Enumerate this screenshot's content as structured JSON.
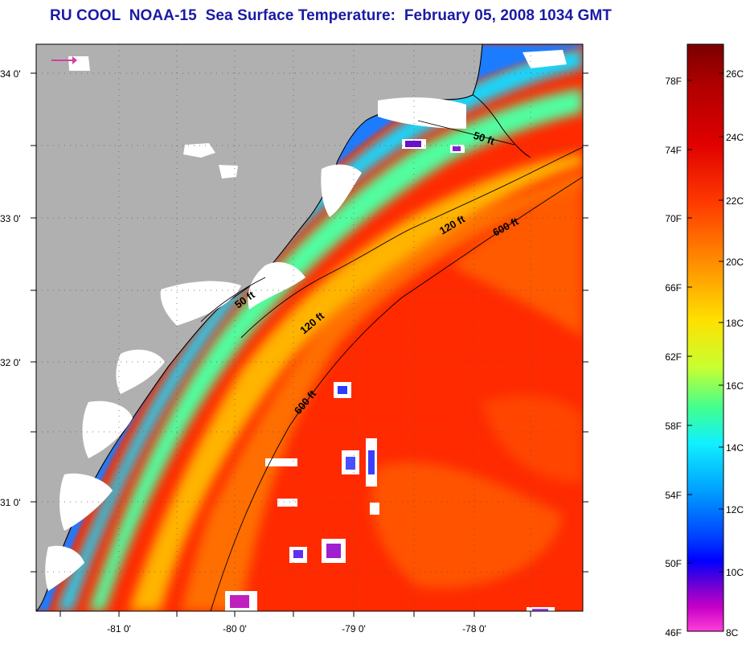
{
  "title": "RU COOL  NOAA-15  Sea Surface Temperature:  February 05, 2008 1034 GMT",
  "map": {
    "lat_ticks": [
      {
        "label": "34 0'",
        "value": 34.0
      },
      {
        "label": "33 0'",
        "value": 33.0
      },
      {
        "label": "32 0'",
        "value": 32.0
      },
      {
        "label": "31 0'",
        "value": 31.0
      }
    ],
    "lon_ticks": [
      {
        "label": "-81 0'",
        "value": -81.0
      },
      {
        "label": "-80 0'",
        "value": -80.0
      },
      {
        "label": "-79 0'",
        "value": -79.0
      },
      {
        "label": "-78 0'",
        "value": -78.0
      }
    ],
    "contour_labels": [
      "50 ft",
      "50 ft",
      "120 ft",
      "120 ft",
      "600 ft",
      "600 ft"
    ],
    "colors": {
      "land": "#b0b0b0",
      "cloud": "#ffffff",
      "coastline": "#000000",
      "arrow": "#d43fa0"
    }
  },
  "colorbar": {
    "fahrenheit_labels": [
      "78F",
      "74F",
      "70F",
      "66F",
      "62F",
      "58F",
      "54F",
      "50F",
      "46F"
    ],
    "celsius_labels": [
      "26C",
      "24C",
      "22C",
      "20C",
      "18C",
      "16C",
      "14C",
      "12C",
      "10C",
      "8C"
    ],
    "colors_top_to_bottom": [
      "#7a0000",
      "#c40000",
      "#ff1a00",
      "#ff6a00",
      "#ffaa00",
      "#ffff00",
      "#9cff50",
      "#1affd0",
      "#00c8ff",
      "#0064ff",
      "#0000ff",
      "#6a00d4",
      "#c800c8",
      "#ff3cd2"
    ]
  }
}
